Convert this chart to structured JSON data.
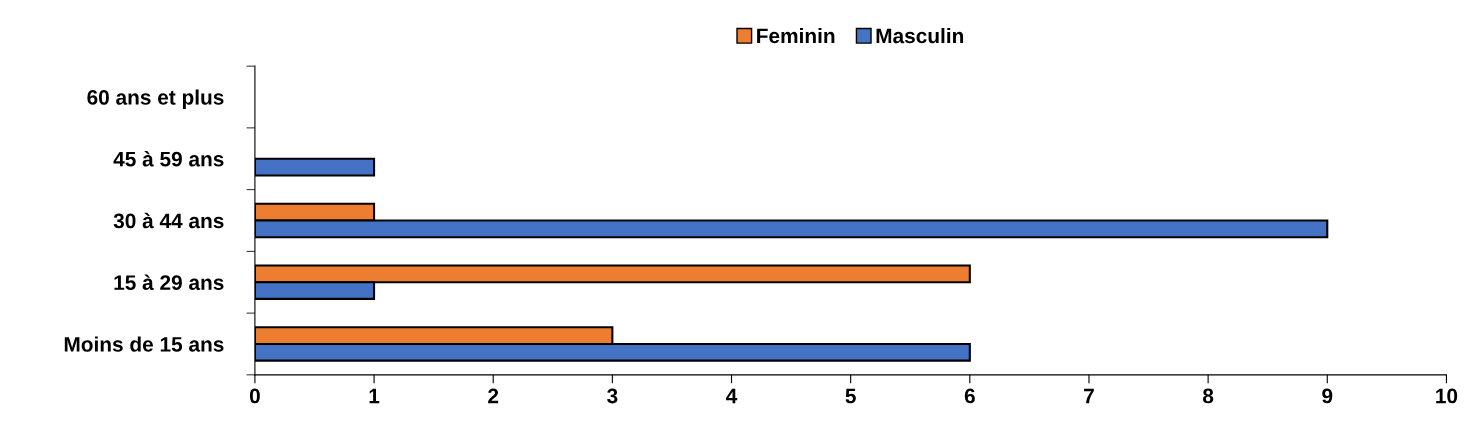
{
  "chart_data": {
    "type": "bar",
    "orientation": "horizontal",
    "categories": [
      "60 ans et plus",
      "45 à 59 ans",
      "30 à 44 ans",
      "15 à 29 ans",
      "Moins de 15 ans"
    ],
    "series": [
      {
        "name": "Feminin",
        "color": "#ed7d31",
        "values": [
          null,
          null,
          1,
          6,
          3
        ]
      },
      {
        "name": "Masculin",
        "color": "#4472c4",
        "values": [
          null,
          1,
          9,
          1,
          6
        ]
      }
    ],
    "xlim": [
      0,
      10
    ],
    "xticks": [
      0,
      1,
      2,
      3,
      4,
      5,
      6,
      7,
      8,
      9,
      10
    ],
    "grid": false,
    "legend": "top"
  }
}
